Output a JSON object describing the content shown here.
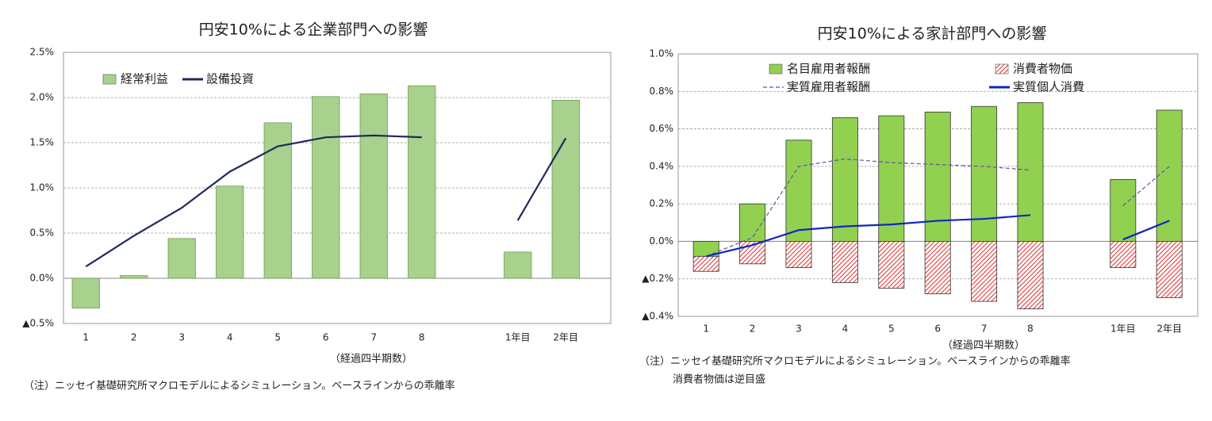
{
  "chart_data": [
    {
      "type": "bar",
      "title": "円安10%による企業部門への影響",
      "xlabel": "（経過四半期数）",
      "notes": [
        "（注）ニッセイ基礎研究所マクロモデルによるシミュレーション。ベースラインからの乖離率"
      ],
      "categories": [
        "1",
        "2",
        "3",
        "4",
        "5",
        "6",
        "7",
        "8",
        null,
        "1年目",
        "2年目"
      ],
      "series": [
        {
          "name": "経常利益",
          "type": "bar",
          "color": "#a9d18e",
          "values": [
            -0.33,
            0.03,
            0.44,
            1.02,
            1.72,
            2.01,
            2.04,
            2.13,
            null,
            0.29,
            1.97
          ]
        },
        {
          "name": "設備投資",
          "type": "line",
          "color": "#1f2a5c",
          "values": [
            0.13,
            0.47,
            0.78,
            1.18,
            1.46,
            1.56,
            1.58,
            1.56,
            null,
            0.64,
            1.55
          ]
        }
      ],
      "ylim": [
        -0.5,
        2.5
      ],
      "yticks": [
        {
          "value": -0.5,
          "label": "▲0.5%"
        },
        {
          "value": 0,
          "label": "0.0%"
        },
        {
          "value": 0.5,
          "label": "0.5%"
        },
        {
          "value": 1.0,
          "label": "1.0%"
        },
        {
          "value": 1.5,
          "label": "1.5%"
        },
        {
          "value": 2.0,
          "label": "2.0%"
        },
        {
          "value": 2.5,
          "label": "2.5%"
        }
      ],
      "grid": true
    },
    {
      "type": "bar",
      "title": "円安10%による家計部門への影響",
      "xlabel": "（経過四半期数）",
      "notes": [
        "（注）ニッセイ基礎研究所マクロモデルによるシミュレーション。ベースラインからの乖離率",
        "消費者物価は逆目盛"
      ],
      "categories": [
        "1",
        "2",
        "3",
        "4",
        "5",
        "6",
        "7",
        "8",
        null,
        "1年目",
        "2年目"
      ],
      "series": [
        {
          "name": "名目雇用者報酬",
          "type": "bar",
          "color": "#92d050",
          "values": [
            -0.08,
            0.2,
            0.54,
            0.66,
            0.67,
            0.69,
            0.72,
            0.74,
            null,
            0.33,
            0.7
          ]
        },
        {
          "name": "消費者物価",
          "type": "bar",
          "color": "#e03c3c",
          "hatch": true,
          "values": [
            -0.08,
            -0.12,
            -0.14,
            -0.22,
            -0.25,
            -0.28,
            -0.32,
            -0.36,
            null,
            -0.14,
            -0.3
          ]
        },
        {
          "name": "実質雇用者報酬",
          "type": "line",
          "color": "#6a4fa0",
          "dashed": true,
          "values": [
            -0.08,
            0.02,
            0.4,
            0.44,
            0.42,
            0.41,
            0.4,
            0.38,
            null,
            0.19,
            0.4
          ]
        },
        {
          "name": "実質個人消費",
          "type": "line",
          "color": "#1028c0",
          "values": [
            -0.08,
            -0.02,
            0.06,
            0.08,
            0.09,
            0.11,
            0.12,
            0.14,
            null,
            0.01,
            0.11
          ]
        }
      ],
      "ylim": [
        -0.4,
        1.0
      ],
      "yticks": [
        {
          "value": -0.4,
          "label": "▲0.4%"
        },
        {
          "value": -0.2,
          "label": "▲0.2%"
        },
        {
          "value": 0,
          "label": "0.0%"
        },
        {
          "value": 0.2,
          "label": "0.2%"
        },
        {
          "value": 0.4,
          "label": "0.4%"
        },
        {
          "value": 0.6,
          "label": "0.6%"
        },
        {
          "value": 0.8,
          "label": "0.8%"
        },
        {
          "value": 1.0,
          "label": "1.0%"
        }
      ],
      "grid": true
    }
  ]
}
